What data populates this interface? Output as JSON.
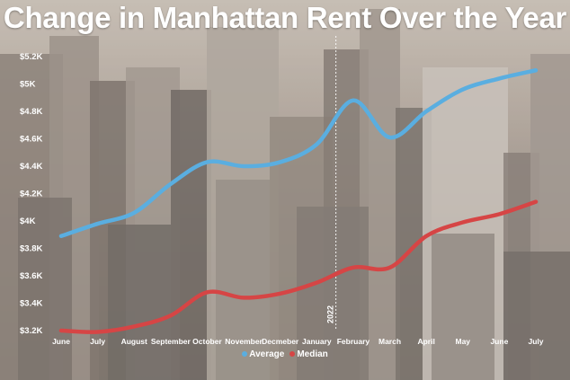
{
  "chart_data": {
    "type": "line",
    "title": "Change in Manhattan Rent Over the Year",
    "categories": [
      "June",
      "July",
      "August",
      "September",
      "October",
      "November",
      "Decmeber",
      "January",
      "February",
      "March",
      "April",
      "May",
      "June",
      "July"
    ],
    "y_ticks": [
      "$3.2K",
      "$3.4K",
      "$3.6K",
      "$3.8K",
      "$4K",
      "$4.2K",
      "$4.4K",
      "$4.6K",
      "$4.8K",
      "$5K",
      "$5.2K"
    ],
    "ylim": [
      3200,
      5200
    ],
    "series": [
      {
        "name": "Average",
        "color": "#5aaee0",
        "values": [
          3890,
          3980,
          4060,
          4270,
          4430,
          4400,
          4430,
          4560,
          4880,
          4610,
          4800,
          4960,
          5040,
          5100
        ]
      },
      {
        "name": "Median",
        "color": "#d64545",
        "values": [
          3200,
          3190,
          3230,
          3310,
          3480,
          3440,
          3470,
          3550,
          3660,
          3660,
          3890,
          3990,
          4050,
          4140
        ]
      }
    ],
    "annotation": {
      "label": "2022",
      "at_index": 7.5
    },
    "legend_position": "bottom-center",
    "grid": false
  }
}
